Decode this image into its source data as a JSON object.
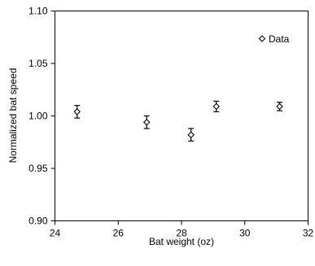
{
  "chart_data": {
    "type": "scatter",
    "xlabel": "Bat weight (oz)",
    "ylabel": "Normalized bat speed",
    "xlim": [
      24,
      32
    ],
    "ylim": [
      0.9,
      1.1
    ],
    "xticks": [
      "24",
      "26",
      "28",
      "30",
      "32"
    ],
    "yticks": [
      "0.90",
      "0.95",
      "1.00",
      "1.05",
      "1.10"
    ],
    "grid": false,
    "legend_position": "top-right",
    "series": [
      {
        "name": "Data",
        "marker": "diamond-open",
        "x": [
          24.7,
          26.9,
          28.3,
          29.1,
          31.1
        ],
        "y": [
          1.004,
          0.994,
          0.982,
          1.009,
          1.009
        ],
        "error": [
          0.006,
          0.006,
          0.006,
          0.005,
          0.004
        ]
      }
    ]
  }
}
